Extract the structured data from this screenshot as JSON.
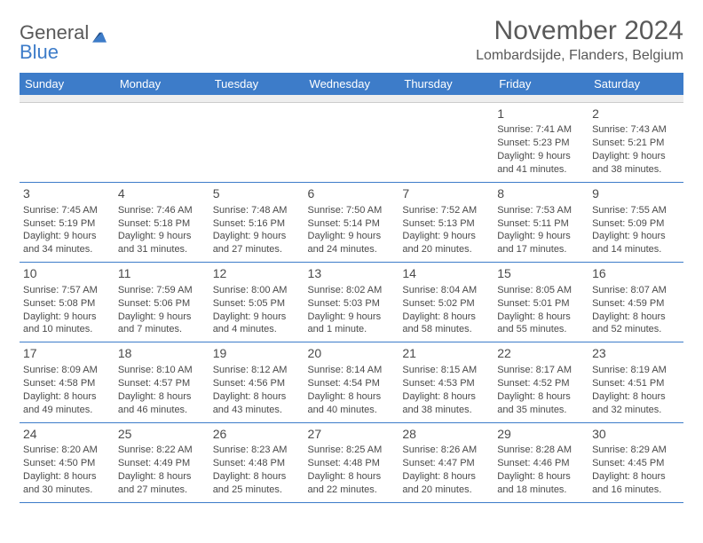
{
  "brand": {
    "name1": "General",
    "name2": "Blue"
  },
  "title": "November 2024",
  "location": "Lombardsijde, Flanders, Belgium",
  "weekdays": [
    "Sunday",
    "Monday",
    "Tuesday",
    "Wednesday",
    "Thursday",
    "Friday",
    "Saturday"
  ],
  "colors": {
    "accent": "#3d7cc9",
    "header_text": "#ffffff",
    "text": "#4a4a4a",
    "muted": "#595959"
  },
  "weeks": [
    [
      null,
      null,
      null,
      null,
      null,
      {
        "n": "1",
        "sunrise": "Sunrise: 7:41 AM",
        "sunset": "Sunset: 5:23 PM",
        "day1": "Daylight: 9 hours",
        "day2": "and 41 minutes."
      },
      {
        "n": "2",
        "sunrise": "Sunrise: 7:43 AM",
        "sunset": "Sunset: 5:21 PM",
        "day1": "Daylight: 9 hours",
        "day2": "and 38 minutes."
      }
    ],
    [
      {
        "n": "3",
        "sunrise": "Sunrise: 7:45 AM",
        "sunset": "Sunset: 5:19 PM",
        "day1": "Daylight: 9 hours",
        "day2": "and 34 minutes."
      },
      {
        "n": "4",
        "sunrise": "Sunrise: 7:46 AM",
        "sunset": "Sunset: 5:18 PM",
        "day1": "Daylight: 9 hours",
        "day2": "and 31 minutes."
      },
      {
        "n": "5",
        "sunrise": "Sunrise: 7:48 AM",
        "sunset": "Sunset: 5:16 PM",
        "day1": "Daylight: 9 hours",
        "day2": "and 27 minutes."
      },
      {
        "n": "6",
        "sunrise": "Sunrise: 7:50 AM",
        "sunset": "Sunset: 5:14 PM",
        "day1": "Daylight: 9 hours",
        "day2": "and 24 minutes."
      },
      {
        "n": "7",
        "sunrise": "Sunrise: 7:52 AM",
        "sunset": "Sunset: 5:13 PM",
        "day1": "Daylight: 9 hours",
        "day2": "and 20 minutes."
      },
      {
        "n": "8",
        "sunrise": "Sunrise: 7:53 AM",
        "sunset": "Sunset: 5:11 PM",
        "day1": "Daylight: 9 hours",
        "day2": "and 17 minutes."
      },
      {
        "n": "9",
        "sunrise": "Sunrise: 7:55 AM",
        "sunset": "Sunset: 5:09 PM",
        "day1": "Daylight: 9 hours",
        "day2": "and 14 minutes."
      }
    ],
    [
      {
        "n": "10",
        "sunrise": "Sunrise: 7:57 AM",
        "sunset": "Sunset: 5:08 PM",
        "day1": "Daylight: 9 hours",
        "day2": "and 10 minutes."
      },
      {
        "n": "11",
        "sunrise": "Sunrise: 7:59 AM",
        "sunset": "Sunset: 5:06 PM",
        "day1": "Daylight: 9 hours",
        "day2": "and 7 minutes."
      },
      {
        "n": "12",
        "sunrise": "Sunrise: 8:00 AM",
        "sunset": "Sunset: 5:05 PM",
        "day1": "Daylight: 9 hours",
        "day2": "and 4 minutes."
      },
      {
        "n": "13",
        "sunrise": "Sunrise: 8:02 AM",
        "sunset": "Sunset: 5:03 PM",
        "day1": "Daylight: 9 hours",
        "day2": "and 1 minute."
      },
      {
        "n": "14",
        "sunrise": "Sunrise: 8:04 AM",
        "sunset": "Sunset: 5:02 PM",
        "day1": "Daylight: 8 hours",
        "day2": "and 58 minutes."
      },
      {
        "n": "15",
        "sunrise": "Sunrise: 8:05 AM",
        "sunset": "Sunset: 5:01 PM",
        "day1": "Daylight: 8 hours",
        "day2": "and 55 minutes."
      },
      {
        "n": "16",
        "sunrise": "Sunrise: 8:07 AM",
        "sunset": "Sunset: 4:59 PM",
        "day1": "Daylight: 8 hours",
        "day2": "and 52 minutes."
      }
    ],
    [
      {
        "n": "17",
        "sunrise": "Sunrise: 8:09 AM",
        "sunset": "Sunset: 4:58 PM",
        "day1": "Daylight: 8 hours",
        "day2": "and 49 minutes."
      },
      {
        "n": "18",
        "sunrise": "Sunrise: 8:10 AM",
        "sunset": "Sunset: 4:57 PM",
        "day1": "Daylight: 8 hours",
        "day2": "and 46 minutes."
      },
      {
        "n": "19",
        "sunrise": "Sunrise: 8:12 AM",
        "sunset": "Sunset: 4:56 PM",
        "day1": "Daylight: 8 hours",
        "day2": "and 43 minutes."
      },
      {
        "n": "20",
        "sunrise": "Sunrise: 8:14 AM",
        "sunset": "Sunset: 4:54 PM",
        "day1": "Daylight: 8 hours",
        "day2": "and 40 minutes."
      },
      {
        "n": "21",
        "sunrise": "Sunrise: 8:15 AM",
        "sunset": "Sunset: 4:53 PM",
        "day1": "Daylight: 8 hours",
        "day2": "and 38 minutes."
      },
      {
        "n": "22",
        "sunrise": "Sunrise: 8:17 AM",
        "sunset": "Sunset: 4:52 PM",
        "day1": "Daylight: 8 hours",
        "day2": "and 35 minutes."
      },
      {
        "n": "23",
        "sunrise": "Sunrise: 8:19 AM",
        "sunset": "Sunset: 4:51 PM",
        "day1": "Daylight: 8 hours",
        "day2": "and 32 minutes."
      }
    ],
    [
      {
        "n": "24",
        "sunrise": "Sunrise: 8:20 AM",
        "sunset": "Sunset: 4:50 PM",
        "day1": "Daylight: 8 hours",
        "day2": "and 30 minutes."
      },
      {
        "n": "25",
        "sunrise": "Sunrise: 8:22 AM",
        "sunset": "Sunset: 4:49 PM",
        "day1": "Daylight: 8 hours",
        "day2": "and 27 minutes."
      },
      {
        "n": "26",
        "sunrise": "Sunrise: 8:23 AM",
        "sunset": "Sunset: 4:48 PM",
        "day1": "Daylight: 8 hours",
        "day2": "and 25 minutes."
      },
      {
        "n": "27",
        "sunrise": "Sunrise: 8:25 AM",
        "sunset": "Sunset: 4:48 PM",
        "day1": "Daylight: 8 hours",
        "day2": "and 22 minutes."
      },
      {
        "n": "28",
        "sunrise": "Sunrise: 8:26 AM",
        "sunset": "Sunset: 4:47 PM",
        "day1": "Daylight: 8 hours",
        "day2": "and 20 minutes."
      },
      {
        "n": "29",
        "sunrise": "Sunrise: 8:28 AM",
        "sunset": "Sunset: 4:46 PM",
        "day1": "Daylight: 8 hours",
        "day2": "and 18 minutes."
      },
      {
        "n": "30",
        "sunrise": "Sunrise: 8:29 AM",
        "sunset": "Sunset: 4:45 PM",
        "day1": "Daylight: 8 hours",
        "day2": "and 16 minutes."
      }
    ]
  ]
}
